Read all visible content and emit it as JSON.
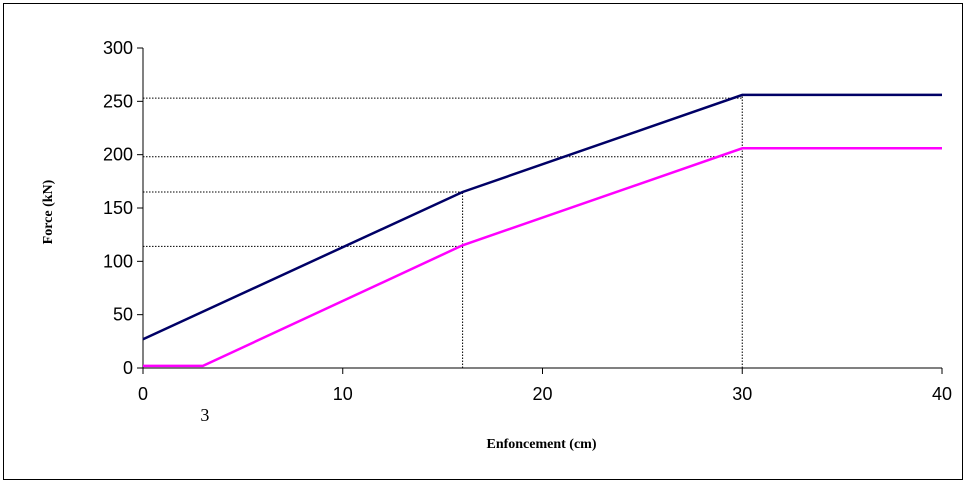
{
  "chart_data": {
    "type": "line",
    "title": "",
    "xlabel": "Enfoncement  (cm)",
    "ylabel": "Force (kN)",
    "xlim": [
      0,
      40
    ],
    "ylim": [
      0,
      300
    ],
    "xticks": [
      0,
      10,
      20,
      30,
      40
    ],
    "yticks": [
      0,
      50,
      100,
      150,
      200,
      250,
      300
    ],
    "xtick_labels": [
      "0",
      "10",
      "20",
      "30",
      "40"
    ],
    "ytick_labels": [
      "0",
      "50",
      "100",
      "150",
      "200",
      "250",
      "300"
    ],
    "extra_x_label": {
      "x": 3,
      "text": "3"
    },
    "grid": false,
    "legend": "none",
    "series": [
      {
        "color": "#000066",
        "x": [
          0,
          16,
          30,
          40
        ],
        "y": [
          27,
          165,
          256,
          256
        ]
      },
      {
        "color": "#FF00FF",
        "x": [
          0,
          3,
          16,
          30,
          40
        ],
        "y": [
          2,
          2,
          115,
          206,
          206
        ]
      }
    ],
    "reference_lines": {
      "color": "#000000",
      "style": "dotted",
      "horizontal": [
        {
          "y": 253,
          "x_to": 30
        },
        {
          "y": 198,
          "x_to": 30
        },
        {
          "y": 165,
          "x_to": 16
        },
        {
          "y": 114,
          "x_to": 16
        }
      ],
      "vertical": [
        {
          "x": 16,
          "y_to": 165
        },
        {
          "x": 30,
          "y_to": 256
        }
      ]
    }
  }
}
